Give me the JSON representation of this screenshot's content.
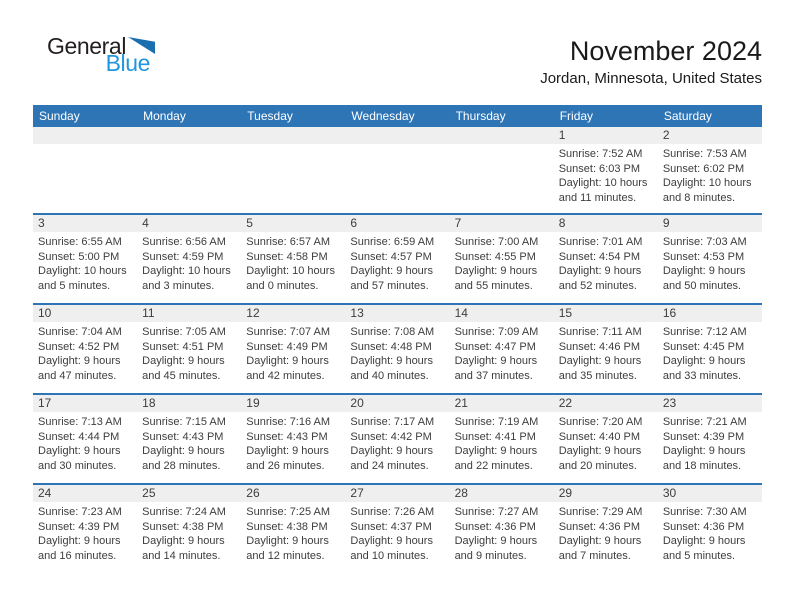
{
  "logo": {
    "general": "General",
    "blue": "Blue"
  },
  "header": {
    "title": "November 2024",
    "subtitle": "Jordan, Minnesota, United States"
  },
  "colors": {
    "header_bar": "#2e75b6",
    "week_separator": "#2e75b6",
    "day_number_stripe": "#efefef",
    "logo_triangle": "#1b6faf",
    "logo_blue_text": "#2196e0",
    "body_text": "#3d3d3d"
  },
  "calendar": {
    "weekdays": [
      "Sunday",
      "Monday",
      "Tuesday",
      "Wednesday",
      "Thursday",
      "Friday",
      "Saturday"
    ],
    "weeks": [
      [
        {
          "day": "",
          "lines": []
        },
        {
          "day": "",
          "lines": []
        },
        {
          "day": "",
          "lines": []
        },
        {
          "day": "",
          "lines": []
        },
        {
          "day": "",
          "lines": []
        },
        {
          "day": "1",
          "lines": [
            "Sunrise: 7:52 AM",
            "Sunset: 6:03 PM",
            "Daylight: 10 hours",
            "and 11 minutes."
          ]
        },
        {
          "day": "2",
          "lines": [
            "Sunrise: 7:53 AM",
            "Sunset: 6:02 PM",
            "Daylight: 10 hours",
            "and 8 minutes."
          ]
        }
      ],
      [
        {
          "day": "3",
          "lines": [
            "Sunrise: 6:55 AM",
            "Sunset: 5:00 PM",
            "Daylight: 10 hours",
            "and 5 minutes."
          ]
        },
        {
          "day": "4",
          "lines": [
            "Sunrise: 6:56 AM",
            "Sunset: 4:59 PM",
            "Daylight: 10 hours",
            "and 3 minutes."
          ]
        },
        {
          "day": "5",
          "lines": [
            "Sunrise: 6:57 AM",
            "Sunset: 4:58 PM",
            "Daylight: 10 hours",
            "and 0 minutes."
          ]
        },
        {
          "day": "6",
          "lines": [
            "Sunrise: 6:59 AM",
            "Sunset: 4:57 PM",
            "Daylight: 9 hours",
            "and 57 minutes."
          ]
        },
        {
          "day": "7",
          "lines": [
            "Sunrise: 7:00 AM",
            "Sunset: 4:55 PM",
            "Daylight: 9 hours",
            "and 55 minutes."
          ]
        },
        {
          "day": "8",
          "lines": [
            "Sunrise: 7:01 AM",
            "Sunset: 4:54 PM",
            "Daylight: 9 hours",
            "and 52 minutes."
          ]
        },
        {
          "day": "9",
          "lines": [
            "Sunrise: 7:03 AM",
            "Sunset: 4:53 PM",
            "Daylight: 9 hours",
            "and 50 minutes."
          ]
        }
      ],
      [
        {
          "day": "10",
          "lines": [
            "Sunrise: 7:04 AM",
            "Sunset: 4:52 PM",
            "Daylight: 9 hours",
            "and 47 minutes."
          ]
        },
        {
          "day": "11",
          "lines": [
            "Sunrise: 7:05 AM",
            "Sunset: 4:51 PM",
            "Daylight: 9 hours",
            "and 45 minutes."
          ]
        },
        {
          "day": "12",
          "lines": [
            "Sunrise: 7:07 AM",
            "Sunset: 4:49 PM",
            "Daylight: 9 hours",
            "and 42 minutes."
          ]
        },
        {
          "day": "13",
          "lines": [
            "Sunrise: 7:08 AM",
            "Sunset: 4:48 PM",
            "Daylight: 9 hours",
            "and 40 minutes."
          ]
        },
        {
          "day": "14",
          "lines": [
            "Sunrise: 7:09 AM",
            "Sunset: 4:47 PM",
            "Daylight: 9 hours",
            "and 37 minutes."
          ]
        },
        {
          "day": "15",
          "lines": [
            "Sunrise: 7:11 AM",
            "Sunset: 4:46 PM",
            "Daylight: 9 hours",
            "and 35 minutes."
          ]
        },
        {
          "day": "16",
          "lines": [
            "Sunrise: 7:12 AM",
            "Sunset: 4:45 PM",
            "Daylight: 9 hours",
            "and 33 minutes."
          ]
        }
      ],
      [
        {
          "day": "17",
          "lines": [
            "Sunrise: 7:13 AM",
            "Sunset: 4:44 PM",
            "Daylight: 9 hours",
            "and 30 minutes."
          ]
        },
        {
          "day": "18",
          "lines": [
            "Sunrise: 7:15 AM",
            "Sunset: 4:43 PM",
            "Daylight: 9 hours",
            "and 28 minutes."
          ]
        },
        {
          "day": "19",
          "lines": [
            "Sunrise: 7:16 AM",
            "Sunset: 4:43 PM",
            "Daylight: 9 hours",
            "and 26 minutes."
          ]
        },
        {
          "day": "20",
          "lines": [
            "Sunrise: 7:17 AM",
            "Sunset: 4:42 PM",
            "Daylight: 9 hours",
            "and 24 minutes."
          ]
        },
        {
          "day": "21",
          "lines": [
            "Sunrise: 7:19 AM",
            "Sunset: 4:41 PM",
            "Daylight: 9 hours",
            "and 22 minutes."
          ]
        },
        {
          "day": "22",
          "lines": [
            "Sunrise: 7:20 AM",
            "Sunset: 4:40 PM",
            "Daylight: 9 hours",
            "and 20 minutes."
          ]
        },
        {
          "day": "23",
          "lines": [
            "Sunrise: 7:21 AM",
            "Sunset: 4:39 PM",
            "Daylight: 9 hours",
            "and 18 minutes."
          ]
        }
      ],
      [
        {
          "day": "24",
          "lines": [
            "Sunrise: 7:23 AM",
            "Sunset: 4:39 PM",
            "Daylight: 9 hours",
            "and 16 minutes."
          ]
        },
        {
          "day": "25",
          "lines": [
            "Sunrise: 7:24 AM",
            "Sunset: 4:38 PM",
            "Daylight: 9 hours",
            "and 14 minutes."
          ]
        },
        {
          "day": "26",
          "lines": [
            "Sunrise: 7:25 AM",
            "Sunset: 4:38 PM",
            "Daylight: 9 hours",
            "and 12 minutes."
          ]
        },
        {
          "day": "27",
          "lines": [
            "Sunrise: 7:26 AM",
            "Sunset: 4:37 PM",
            "Daylight: 9 hours",
            "and 10 minutes."
          ]
        },
        {
          "day": "28",
          "lines": [
            "Sunrise: 7:27 AM",
            "Sunset: 4:36 PM",
            "Daylight: 9 hours",
            "and 9 minutes."
          ]
        },
        {
          "day": "29",
          "lines": [
            "Sunrise: 7:29 AM",
            "Sunset: 4:36 PM",
            "Daylight: 9 hours",
            "and 7 minutes."
          ]
        },
        {
          "day": "30",
          "lines": [
            "Sunrise: 7:30 AM",
            "Sunset: 4:36 PM",
            "Daylight: 9 hours",
            "and 5 minutes."
          ]
        }
      ]
    ]
  }
}
